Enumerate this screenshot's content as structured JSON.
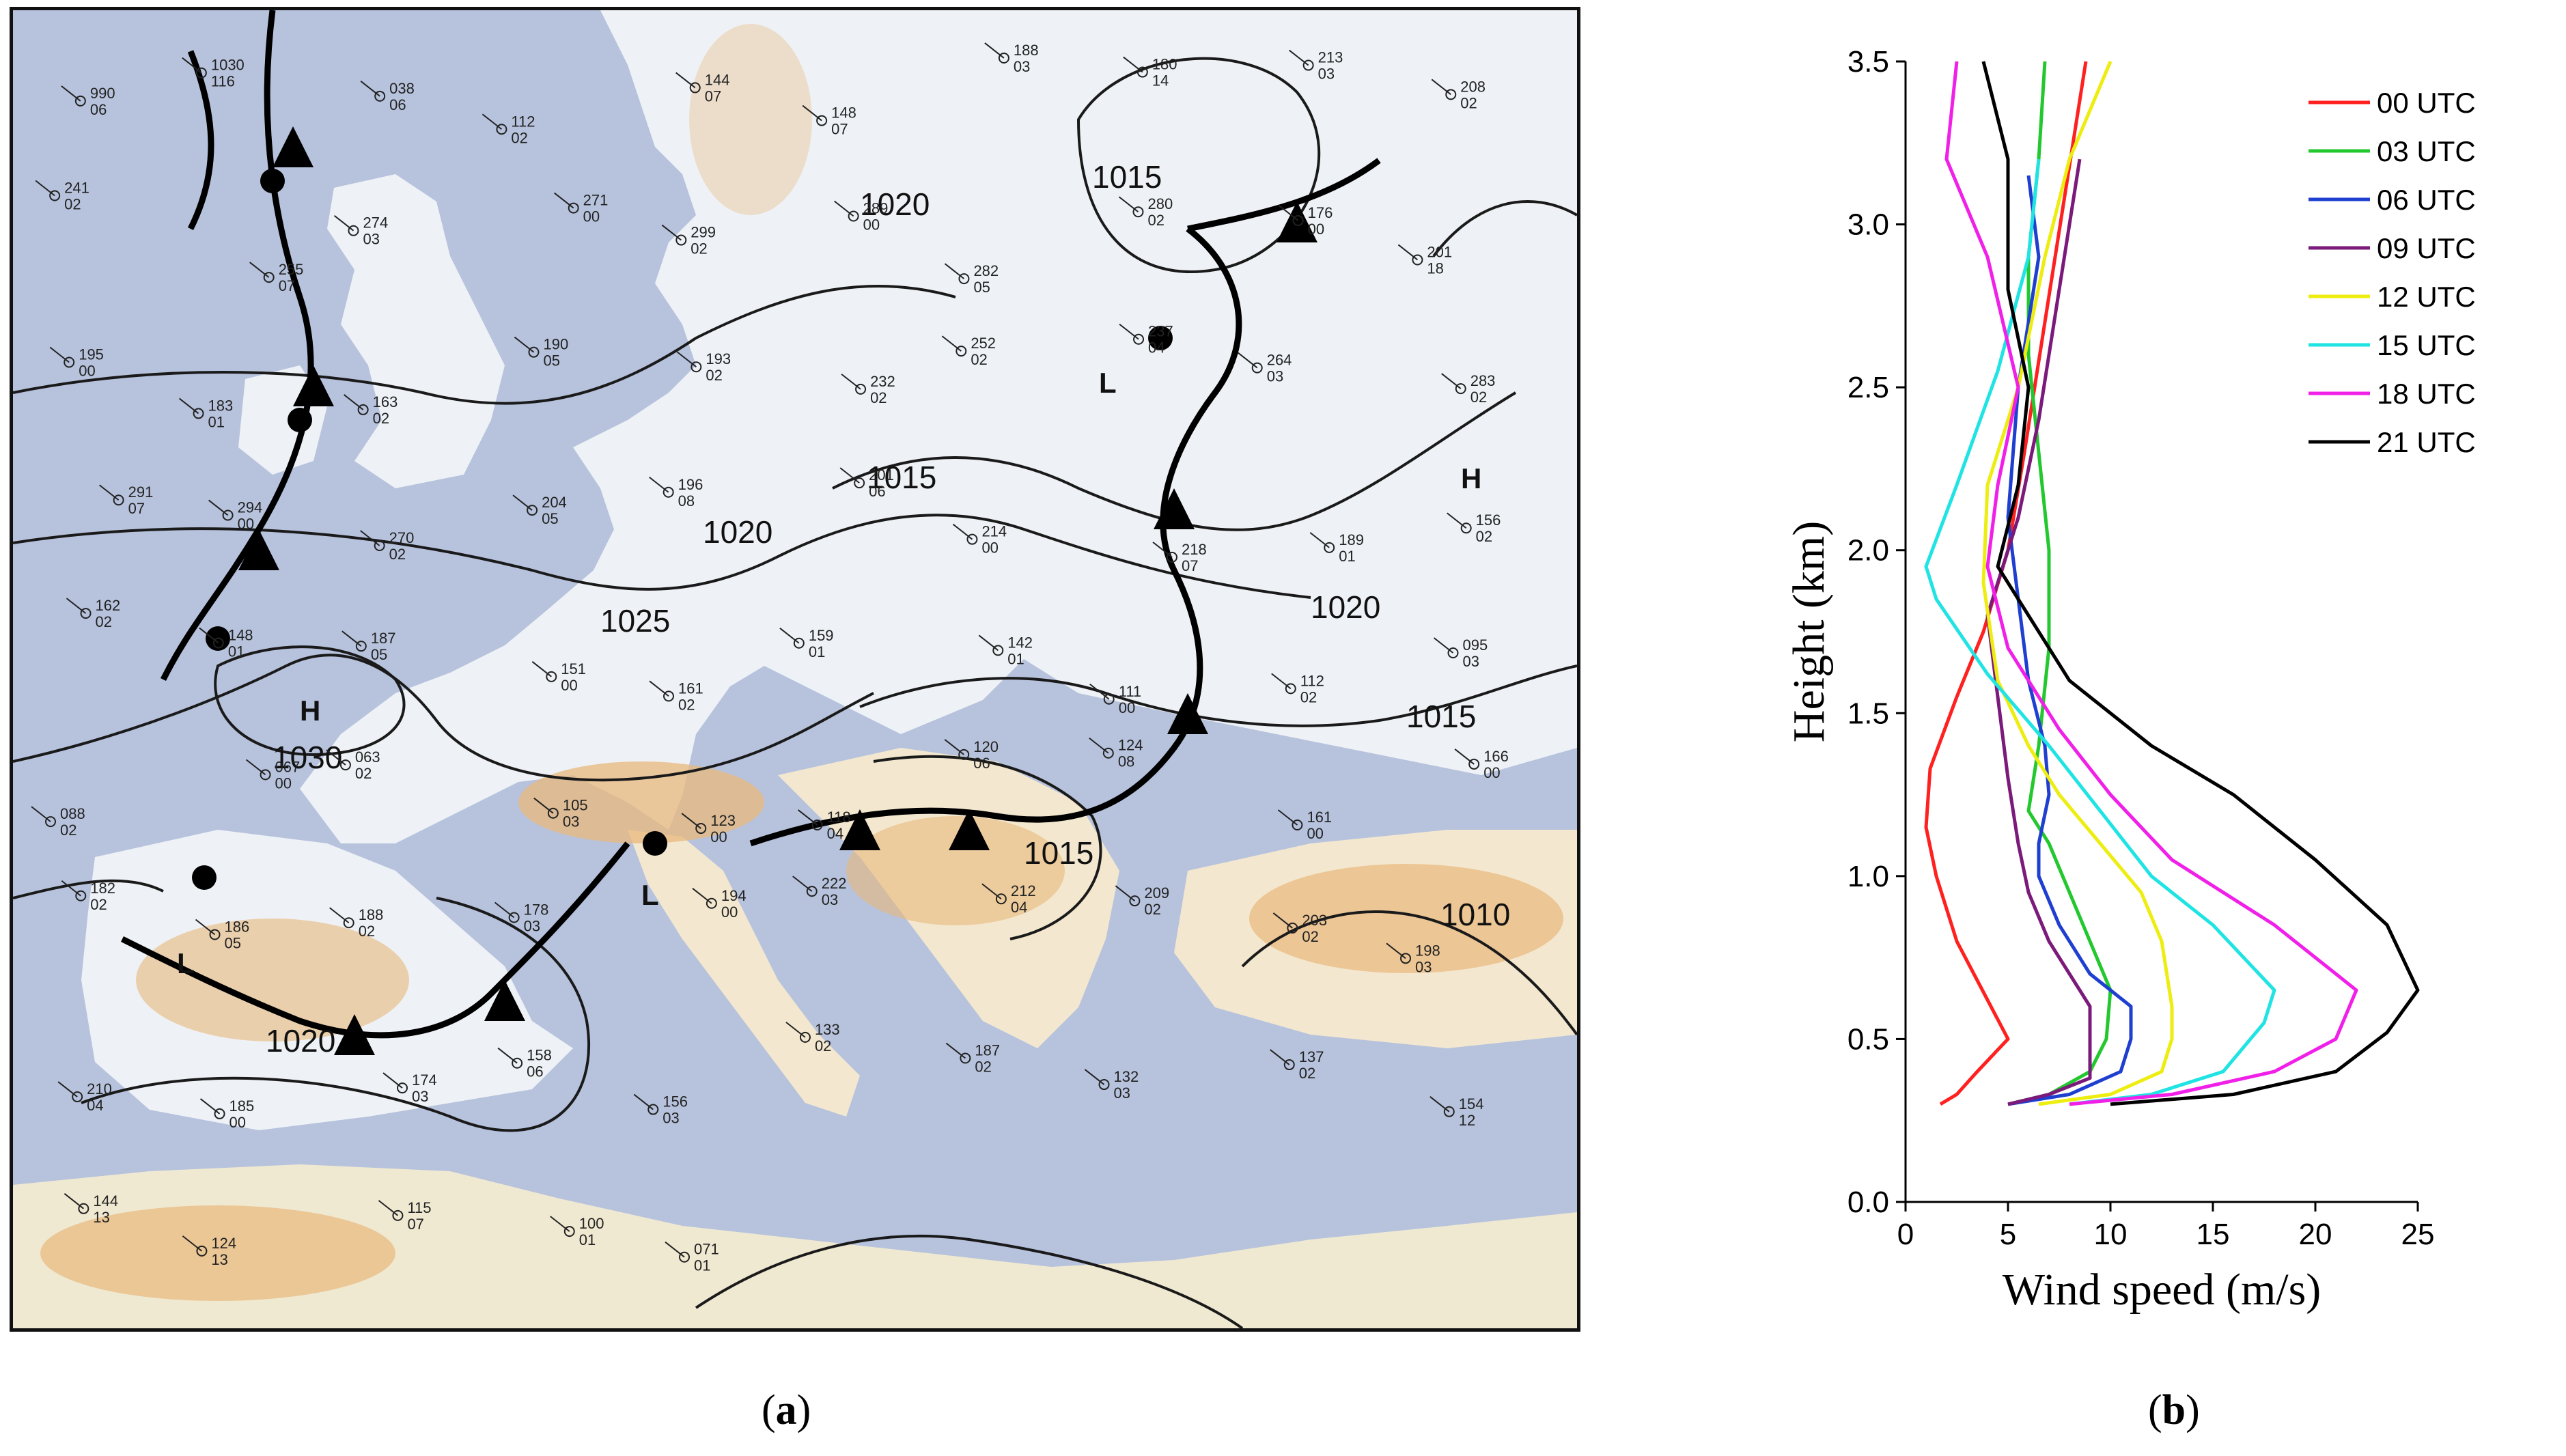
{
  "panel_a": {
    "caption_label": "a",
    "isobar_labels": [
      "1015",
      "1020",
      "1025",
      "1030",
      "1020",
      "1015",
      "1020",
      "1015",
      "1015",
      "1010",
      "1020"
    ],
    "pressure_centers": [
      "H",
      "L",
      "L",
      "H",
      "L"
    ],
    "station_plots": [
      "990 06",
      "1030 116",
      "038 06",
      "112 02",
      "144 07",
      "148 07",
      "188 03",
      "180 14",
      "213 03",
      "208 02",
      "241 02",
      "255 07",
      "274 03",
      "271 00",
      "299 02",
      "289 00",
      "282 05",
      "280 02",
      "176 00",
      "201 18",
      "195 00",
      "183 01",
      "163 02",
      "190 05",
      "193 02",
      "232 02",
      "252 02",
      "237 04",
      "264 03",
      "283 02",
      "291 07",
      "294 00",
      "270 02",
      "204 05",
      "196 08",
      "201 06",
      "214 00",
      "218 07",
      "189 01",
      "156 02",
      "162 02",
      "148 01",
      "187 05",
      "151 00",
      "161 02",
      "159 01",
      "142 01",
      "111 00",
      "112 02",
      "095 03",
      "088 02",
      "067 00",
      "063 02",
      "105 03",
      "123 00",
      "118 04",
      "120 06",
      "124 08",
      "161 00",
      "166 00",
      "182 02",
      "186 05",
      "188 02",
      "178 03",
      "194 00",
      "222 03",
      "212 04",
      "209 02",
      "203 02",
      "198 03",
      "210 04",
      "185 00",
      "174 03",
      "158 06",
      "156 03",
      "133 02",
      "187 02",
      "132 03",
      "137 02",
      "154 12",
      "144 13",
      "124 13",
      "115 07",
      "100 01",
      "071 01"
    ]
  },
  "chart_data": {
    "type": "line",
    "caption_label": "b",
    "xlabel": "Wind speed (m/s)",
    "ylabel": "Height (km)",
    "xlim": [
      0,
      25
    ],
    "ylim": [
      0.0,
      3.5
    ],
    "x_ticks": [
      "0",
      "5",
      "10",
      "15",
      "20",
      "25"
    ],
    "y_ticks": [
      "0.0",
      "0.5",
      "1.0",
      "1.5",
      "2.0",
      "2.5",
      "3.0",
      "3.5"
    ],
    "grid": false,
    "legend_position": "top-right",
    "series": [
      {
        "name": "00 UTC",
        "color": "#ff2020",
        "points": [
          [
            1.7,
            0.3
          ],
          [
            2.5,
            0.33
          ],
          [
            3.5,
            0.4
          ],
          [
            5.0,
            0.5
          ],
          [
            4.0,
            0.62
          ],
          [
            2.5,
            0.8
          ],
          [
            1.5,
            1.0
          ],
          [
            1.0,
            1.15
          ],
          [
            1.2,
            1.33
          ],
          [
            2.5,
            1.55
          ],
          [
            3.8,
            1.75
          ],
          [
            5.0,
            2.0
          ],
          [
            5.8,
            2.3
          ],
          [
            6.8,
            2.7
          ],
          [
            7.8,
            3.1
          ],
          [
            8.8,
            3.5
          ]
        ]
      },
      {
        "name": "03 UTC",
        "color": "#22c82e",
        "points": [
          [
            5.0,
            0.3
          ],
          [
            7.0,
            0.33
          ],
          [
            9.0,
            0.4
          ],
          [
            9.8,
            0.5
          ],
          [
            10.0,
            0.65
          ],
          [
            9.0,
            0.8
          ],
          [
            8.0,
            0.95
          ],
          [
            7.0,
            1.1
          ],
          [
            6.0,
            1.2
          ],
          [
            6.5,
            1.4
          ],
          [
            7.0,
            1.7
          ],
          [
            7.0,
            2.0
          ],
          [
            6.5,
            2.3
          ],
          [
            6.0,
            2.6
          ],
          [
            6.0,
            2.9
          ],
          [
            6.5,
            3.2
          ],
          [
            6.8,
            3.5
          ]
        ]
      },
      {
        "name": "06 UTC",
        "color": "#1f3fd0",
        "points": [
          [
            5.0,
            0.3
          ],
          [
            8.0,
            0.33
          ],
          [
            10.5,
            0.4
          ],
          [
            11.0,
            0.5
          ],
          [
            11.0,
            0.6
          ],
          [
            9.0,
            0.7
          ],
          [
            7.5,
            0.85
          ],
          [
            6.5,
            1.0
          ],
          [
            6.5,
            1.1
          ],
          [
            7.0,
            1.25
          ],
          [
            6.8,
            1.4
          ],
          [
            6.0,
            1.6
          ],
          [
            5.0,
            2.1
          ],
          [
            5.5,
            2.5
          ],
          [
            6.5,
            2.9
          ],
          [
            6.0,
            3.15
          ]
        ]
      },
      {
        "name": "09 UTC",
        "color": "#7b1a7b",
        "points": [
          [
            5.0,
            0.3
          ],
          [
            7.0,
            0.33
          ],
          [
            9.0,
            0.38
          ],
          [
            9.0,
            0.5
          ],
          [
            9.0,
            0.6
          ],
          [
            7.0,
            0.8
          ],
          [
            6.0,
            0.95
          ],
          [
            5.5,
            1.1
          ],
          [
            5.0,
            1.3
          ],
          [
            4.5,
            1.55
          ],
          [
            4.0,
            1.8
          ],
          [
            5.5,
            2.1
          ],
          [
            6.5,
            2.4
          ],
          [
            7.5,
            2.8
          ],
          [
            8.5,
            3.2
          ]
        ]
      },
      {
        "name": "12 UTC",
        "color": "#eded10",
        "points": [
          [
            6.5,
            0.3
          ],
          [
            10.0,
            0.33
          ],
          [
            12.5,
            0.4
          ],
          [
            13.0,
            0.5
          ],
          [
            13.0,
            0.6
          ],
          [
            12.5,
            0.8
          ],
          [
            11.5,
            0.95
          ],
          [
            9.5,
            1.1
          ],
          [
            7.5,
            1.25
          ],
          [
            6.0,
            1.4
          ],
          [
            4.5,
            1.6
          ],
          [
            3.8,
            1.9
          ],
          [
            4.0,
            2.2
          ],
          [
            5.5,
            2.5
          ],
          [
            6.8,
            2.9
          ],
          [
            8.0,
            3.2
          ],
          [
            10.0,
            3.5
          ]
        ]
      },
      {
        "name": "15 UTC",
        "color": "#20e3e3",
        "points": [
          [
            8.0,
            0.3
          ],
          [
            12.0,
            0.33
          ],
          [
            15.5,
            0.4
          ],
          [
            17.5,
            0.55
          ],
          [
            18.0,
            0.65
          ],
          [
            15.0,
            0.85
          ],
          [
            12.0,
            1.0
          ],
          [
            9.5,
            1.2
          ],
          [
            7.0,
            1.4
          ],
          [
            4.0,
            1.62
          ],
          [
            1.5,
            1.85
          ],
          [
            1.0,
            1.95
          ],
          [
            2.5,
            2.2
          ],
          [
            4.5,
            2.55
          ],
          [
            6.0,
            2.9
          ],
          [
            6.5,
            3.2
          ]
        ]
      },
      {
        "name": "18 UTC",
        "color": "#f020e8",
        "points": [
          [
            8.0,
            0.3
          ],
          [
            13.0,
            0.33
          ],
          [
            18.0,
            0.4
          ],
          [
            21.0,
            0.5
          ],
          [
            22.0,
            0.65
          ],
          [
            18.0,
            0.85
          ],
          [
            13.0,
            1.05
          ],
          [
            10.0,
            1.25
          ],
          [
            7.5,
            1.45
          ],
          [
            5.0,
            1.7
          ],
          [
            4.0,
            1.95
          ],
          [
            4.5,
            2.2
          ],
          [
            5.5,
            2.5
          ],
          [
            4.0,
            2.9
          ],
          [
            2.0,
            3.2
          ],
          [
            2.5,
            3.5
          ]
        ]
      },
      {
        "name": "21 UTC",
        "color": "#000000",
        "points": [
          [
            10.0,
            0.3
          ],
          [
            16.0,
            0.33
          ],
          [
            21.0,
            0.4
          ],
          [
            23.5,
            0.52
          ],
          [
            25.0,
            0.65
          ],
          [
            23.5,
            0.85
          ],
          [
            20.0,
            1.05
          ],
          [
            16.0,
            1.25
          ],
          [
            12.0,
            1.4
          ],
          [
            8.0,
            1.6
          ],
          [
            4.5,
            1.95
          ],
          [
            5.5,
            2.2
          ],
          [
            6.0,
            2.5
          ],
          [
            5.0,
            2.8
          ],
          [
            5.0,
            3.2
          ],
          [
            3.8,
            3.5
          ]
        ]
      }
    ]
  }
}
